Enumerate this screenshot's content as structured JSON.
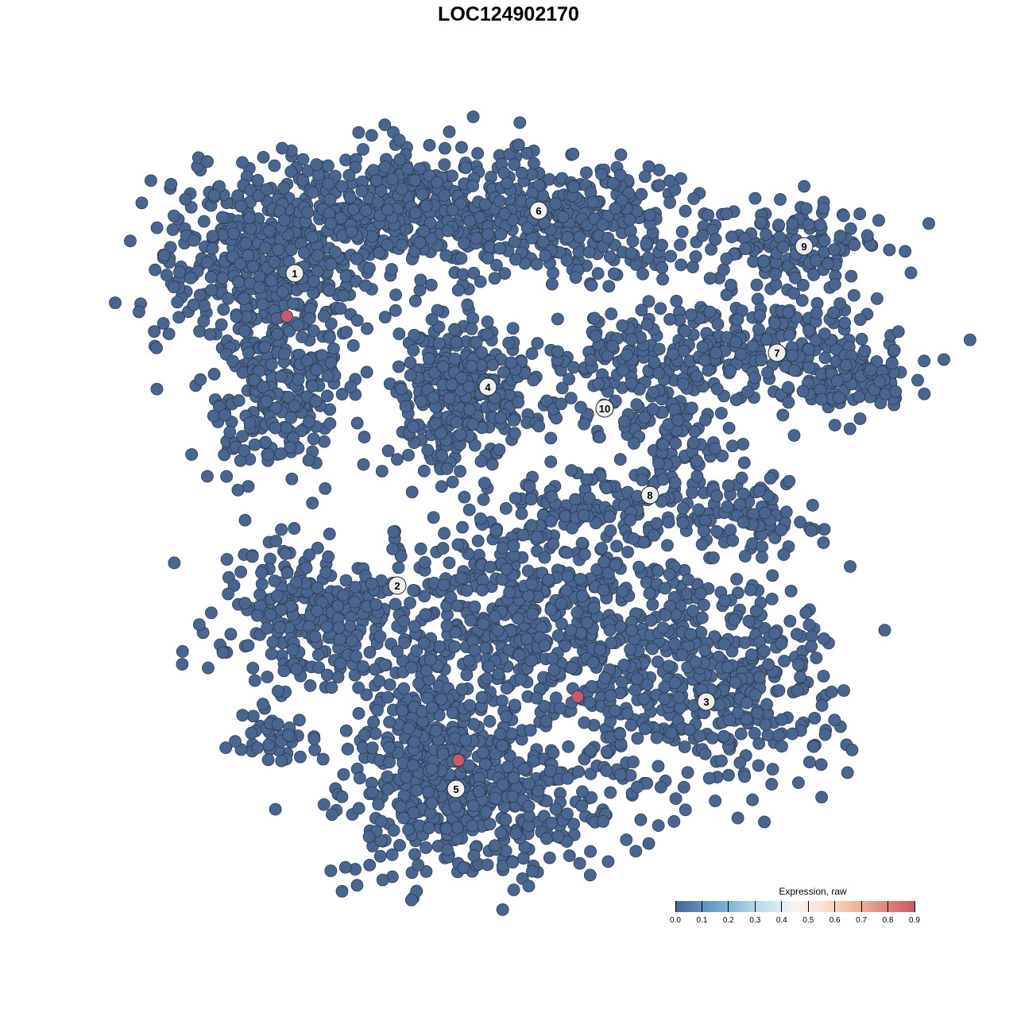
{
  "chart_data": {
    "type": "scatter",
    "title": "LOC124902170",
    "xlabel": "",
    "ylabel": "",
    "grid": false,
    "axes_visible": false,
    "point_color_low": "#4a6690",
    "point_color_high": "#c8586a",
    "clusters": [
      {
        "label": "1",
        "label_pos": [
          -13.45,
          14.8
        ],
        "blobs": [
          {
            "center": [
              -15.5,
              15.5
            ],
            "spread": [
              3.5,
              2.8
            ],
            "n": 400
          },
          {
            "center": [
              -14.5,
              8
            ],
            "spread": [
              2.2,
              3
            ],
            "n": 250
          }
        ]
      },
      {
        "label": "2",
        "label_pos": [
          -7,
          -4.85
        ],
        "blobs": [
          {
            "center": [
              -12.5,
              -7
            ],
            "spread": [
              3,
              2.5
            ],
            "n": 250
          }
        ]
      },
      {
        "label": "3",
        "label_pos": [
          12.45,
          -12.15
        ],
        "blobs": [
          {
            "center": [
              13,
              -11
            ],
            "spread": [
              4,
              3
            ],
            "n": 400
          }
        ]
      },
      {
        "label": "4",
        "label_pos": [
          -1.3,
          7.65
        ],
        "blobs": [
          {
            "center": [
              -3,
              7.5
            ],
            "spread": [
              2.2,
              2.2
            ],
            "n": 350
          }
        ]
      },
      {
        "label": "5",
        "label_pos": [
          -3.3,
          -17.65
        ],
        "blobs": [
          {
            "center": [
              -1.5,
              -18
            ],
            "spread": [
              4.5,
              2.5
            ],
            "n": 500
          },
          {
            "center": [
              -5.5,
              -14
            ],
            "spread": [
              2,
              2.5
            ],
            "n": 150
          }
        ]
      },
      {
        "label": "6",
        "label_pos": [
          1.9,
          18.75
        ],
        "blobs": [
          {
            "center": [
              -6,
              19
            ],
            "spread": [
              5,
              2
            ],
            "n": 450
          },
          {
            "center": [
              4,
              18
            ],
            "spread": [
              3.5,
              1.8
            ],
            "n": 250
          }
        ]
      },
      {
        "label": "7",
        "label_pos": [
          16.9,
          9.8
        ],
        "blobs": [
          {
            "center": [
              16,
              10
            ],
            "spread": [
              4.5,
              1.8
            ],
            "n": 250
          },
          {
            "center": [
              21,
              8
            ],
            "spread": [
              2,
              1
            ],
            "n": 80
          }
        ]
      },
      {
        "label": "8",
        "label_pos": [
          8.9,
          0.85
        ],
        "blobs": [
          {
            "center": [
              14,
              0
            ],
            "spread": [
              2.5,
              1.5
            ],
            "n": 120
          },
          {
            "center": [
              10.5,
              5
            ],
            "spread": [
              1.5,
              2.5
            ],
            "n": 100
          },
          {
            "center": [
              5,
              0
            ],
            "spread": [
              2.5,
              1
            ],
            "n": 80
          }
        ]
      },
      {
        "label": "9",
        "label_pos": [
          18.6,
          16.5
        ],
        "blobs": [
          {
            "center": [
              17.5,
              16.5
            ],
            "spread": [
              2.8,
              1.5
            ],
            "n": 150
          }
        ]
      },
      {
        "label": "10",
        "label_pos": [
          6.05,
          6.3
        ],
        "blobs": [
          {
            "center": [
              6,
              8.5
            ],
            "spread": [
              2,
              2
            ],
            "n": 100
          }
        ]
      },
      {
        "label": "",
        "label_pos": null,
        "blobs": [
          {
            "center": [
              1.5,
              -7
            ],
            "spread": [
              5,
              3.5
            ],
            "n": 600
          },
          {
            "center": [
              -15,
              -14.5
            ],
            "spread": [
              1.5,
              1
            ],
            "n": 40
          }
        ]
      }
    ],
    "highlighted_points": [
      {
        "x": -13.95,
        "y": 12.1,
        "value": 0.9
      },
      {
        "x": 4.35,
        "y": -11.85,
        "value": 0.9
      },
      {
        "x": -3.15,
        "y": -15.85,
        "value": 0.9
      }
    ],
    "baseline_value": 0.0,
    "legend": {
      "title": "Expression, raw",
      "position": "bottom-right",
      "ticks": [
        "0.0",
        "0.1",
        "0.2",
        "0.3",
        "0.4",
        "0.5",
        "0.6",
        "0.7",
        "0.8",
        "0.9"
      ],
      "range": [
        0,
        0.9
      ]
    }
  }
}
